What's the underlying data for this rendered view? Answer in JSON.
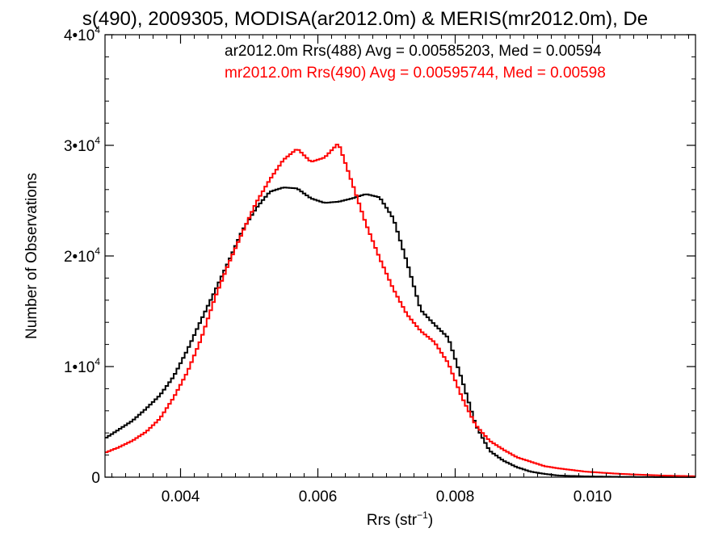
{
  "chart_data": {
    "type": "line",
    "title": "s(490), 2009305, MODISA(ar2012.0m) & MERIS(mr2012.0m), De",
    "xlabel": "Rrs (str",
    "xlabel_sup": "−1",
    "xlabel_close": ")",
    "ylabel": "Number of Observations",
    "xlim": [
      0.0029,
      0.0115
    ],
    "ylim": [
      0,
      40000
    ],
    "xticks": [
      {
        "value": 0.004,
        "label": "0.004"
      },
      {
        "value": 0.006,
        "label": "0.006"
      },
      {
        "value": 0.008,
        "label": "0.008"
      },
      {
        "value": 0.01,
        "label": "0.010"
      }
    ],
    "yticks": [
      {
        "value": 0,
        "base": "0",
        "sup": ""
      },
      {
        "value": 10000,
        "base": "1•10",
        "sup": "4"
      },
      {
        "value": 20000,
        "base": "2•10",
        "sup": "4"
      },
      {
        "value": 30000,
        "base": "3•10",
        "sup": "4"
      },
      {
        "value": 40000,
        "base": "4•10",
        "sup": "4"
      }
    ],
    "legend_position": "top-right",
    "series": [
      {
        "name": "ar2012.0m Rrs(488) Avg = 0.00585203, Med = 0.00594",
        "color": "#000000",
        "x": [
          0.0029,
          0.0031,
          0.0033,
          0.0035,
          0.0037,
          0.0039,
          0.0041,
          0.0043,
          0.0045,
          0.0047,
          0.0049,
          0.0051,
          0.0053,
          0.0055,
          0.0057,
          0.0059,
          0.0061,
          0.0063,
          0.0065,
          0.0067,
          0.0069,
          0.0071,
          0.0073,
          0.0075,
          0.0077,
          0.0079,
          0.0081,
          0.0083,
          0.0085,
          0.0087,
          0.0089,
          0.0091,
          0.0093,
          0.0095,
          0.0099,
          0.0104,
          0.011,
          0.0115
        ],
        "y": [
          3500,
          4300,
          5100,
          6200,
          7400,
          9100,
          11500,
          14200,
          16800,
          19500,
          22300,
          24300,
          25800,
          26200,
          26100,
          25200,
          24800,
          24900,
          25200,
          25600,
          25300,
          23400,
          19400,
          15100,
          13800,
          12600,
          8800,
          4700,
          2400,
          1500,
          900,
          500,
          300,
          150,
          70,
          30,
          10,
          5
        ]
      },
      {
        "name": "mr2012.0m Rrs(490) Avg = 0.00595744, Med = 0.00598",
        "color": "#ff0000",
        "x": [
          0.0029,
          0.0031,
          0.0033,
          0.0035,
          0.0037,
          0.0039,
          0.0041,
          0.0043,
          0.0045,
          0.0047,
          0.0049,
          0.0051,
          0.0053,
          0.0055,
          0.0057,
          0.0059,
          0.0061,
          0.0063,
          0.0065,
          0.0067,
          0.0069,
          0.0071,
          0.0073,
          0.0075,
          0.0077,
          0.0079,
          0.0081,
          0.0083,
          0.0085,
          0.0087,
          0.0089,
          0.0091,
          0.0093,
          0.0095,
          0.0099,
          0.0104,
          0.011,
          0.0115
        ],
        "y": [
          2200,
          2700,
          3300,
          4100,
          5300,
          7200,
          9500,
          12500,
          16200,
          19300,
          22100,
          24800,
          26900,
          28700,
          29700,
          28500,
          28900,
          30200,
          26600,
          22900,
          19800,
          17000,
          14700,
          13200,
          12200,
          10300,
          7200,
          4700,
          3300,
          2500,
          1800,
          1400,
          1000,
          800,
          500,
          300,
          150,
          80
        ]
      }
    ]
  }
}
